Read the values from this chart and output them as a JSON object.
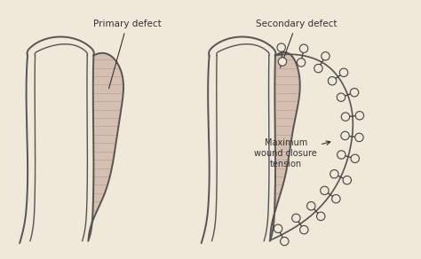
{
  "bg_color": "#f0e8d8",
  "line_color": "#555555",
  "fill_color": "#d4bfb0",
  "hatch_color": "#b09888",
  "stitch_color": "#444444",
  "annotation_color": "#333333",
  "label_fontsize": 7.5,
  "label_font": "sans-serif",
  "primary_label": "Primary defect",
  "secondary_label": "Secondary defect",
  "max_tension_label": "Maximum\nwound closure\ntension"
}
